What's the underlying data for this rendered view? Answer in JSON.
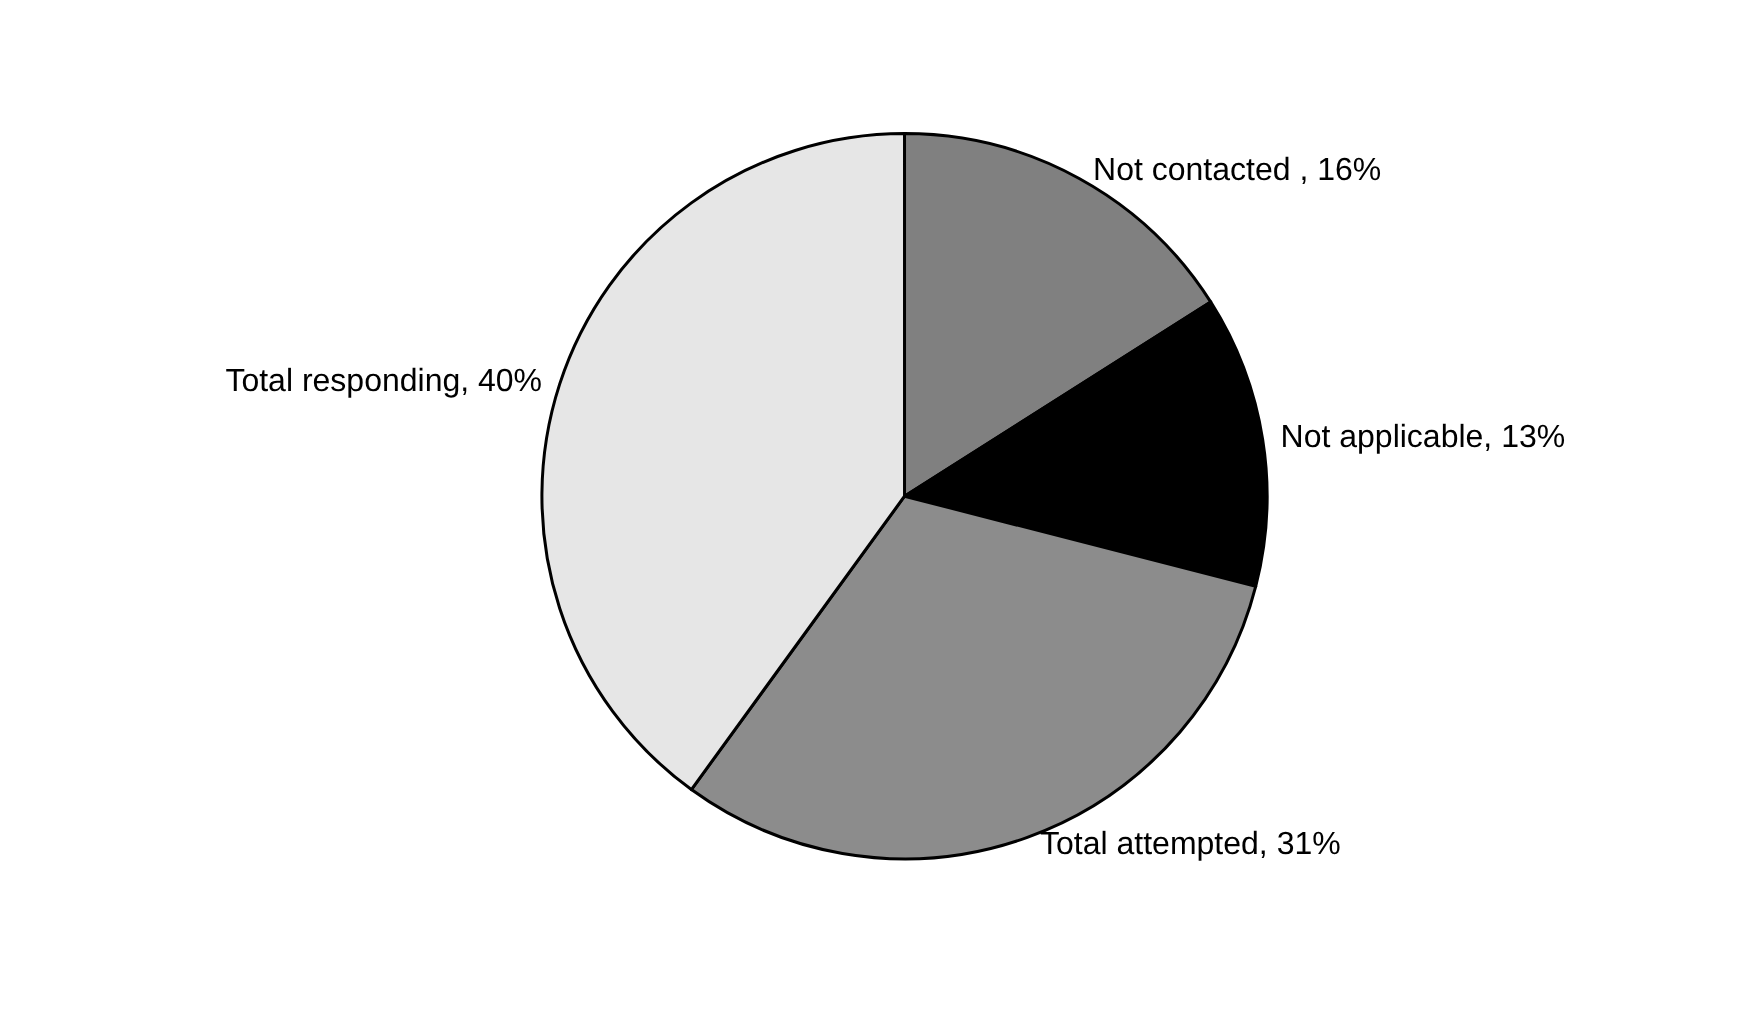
{
  "chart_data": {
    "type": "pie",
    "categories": [
      "Not contacted ",
      "Not applicable",
      "Total attempted",
      "Total responding"
    ],
    "values": [
      16,
      13,
      31,
      40
    ],
    "value_labels": [
      "16%",
      "13%",
      "31%",
      "40%"
    ],
    "colors": [
      "#808080",
      "#000000",
      "#8c8c8c",
      "#e6e6e6"
    ]
  }
}
